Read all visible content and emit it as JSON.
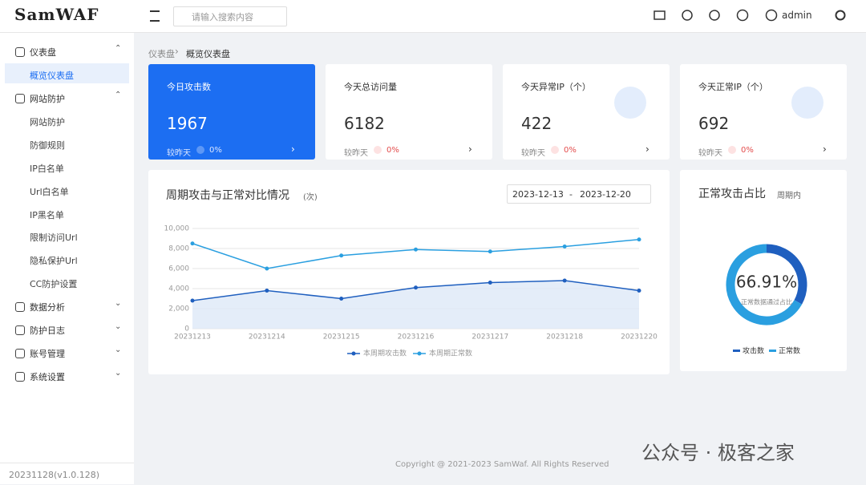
{
  "header": {
    "logo": "SamWAF",
    "search_placeholder": "请输入搜索内容",
    "user": "admin"
  },
  "sidebar": {
    "groups": [
      {
        "label": "仪表盘",
        "items": [
          "概览仪表盘"
        ]
      },
      {
        "label": "网站防护",
        "items": [
          "网站防护",
          "防御规则",
          "IP白名单",
          "Url白名单",
          "IP黑名单",
          "限制访问Url",
          "隐私保护Url",
          "CC防护设置"
        ]
      },
      {
        "label": "数据分析",
        "items": []
      },
      {
        "label": "防护日志",
        "items": []
      },
      {
        "label": "账号管理",
        "items": []
      },
      {
        "label": "系统设置",
        "items": []
      }
    ],
    "version": "20231128(v1.0.128)"
  },
  "breadcrumb": [
    "仪表盘",
    "概览仪表盘"
  ],
  "cards": [
    {
      "title": "今日攻击数",
      "value": 1967,
      "compare": "较昨天",
      "change": "0%"
    },
    {
      "title": "今天总访问量",
      "value": 6182,
      "compare": "较昨天",
      "change": "0%"
    },
    {
      "title": "今天异常IP（个）",
      "value": 422,
      "compare": "较昨天",
      "change": "0%"
    },
    {
      "title": "今天正常IP（个）",
      "value": 692,
      "compare": "较昨天",
      "change": "0%"
    }
  ],
  "chart_data": [
    {
      "type": "line",
      "title": "周期攻击与正常对比情况",
      "subtitle": "(次)",
      "date_range": [
        "2023-12-13",
        "2023-12-20"
      ],
      "date_separator": "-",
      "categories": [
        "20231213",
        "20231214",
        "20231215",
        "20231216",
        "20231217",
        "20231218",
        "20231220"
      ],
      "series": [
        {
          "name": "本周期攻击数",
          "color": "#1f5fbf",
          "values": [
            2800,
            3800,
            3000,
            4100,
            4600,
            4800,
            3800
          ]
        },
        {
          "name": "本周期正常数",
          "color": "#2a9fe0",
          "values": [
            8500,
            6000,
            7300,
            7900,
            7700,
            8200,
            8900
          ]
        }
      ],
      "ylim": [
        0,
        10000
      ],
      "yticks": [
        0,
        {
          "value": 2000,
          "label": "2,000"
        },
        {
          "value": 4000,
          "label": "4,000"
        },
        {
          "value": 6000,
          "label": "6,000"
        },
        {
          "value": 8000,
          "label": "8,000"
        },
        {
          "value": 10000,
          "label": "10,000"
        }
      ],
      "grid": true
    },
    {
      "type": "pie",
      "title": "正常攻击占比",
      "subtitle": "周期内",
      "center_label": "正常数据通过占比",
      "categories": [
        "攻击数",
        "正常数"
      ],
      "values": [
        33.09,
        66.91
      ],
      "value_labels": [
        null,
        "66.91%"
      ],
      "colors": [
        "#1f5fbf",
        "#2a9fe0"
      ]
    }
  ],
  "footer": "Copyright @ 2021-2023 SamWaf. All Rights Reserved",
  "watermark": "公众号 · 极客之家"
}
